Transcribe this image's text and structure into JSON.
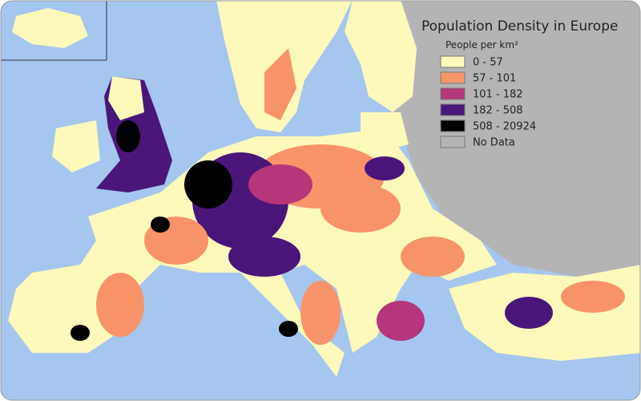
{
  "title": "Population Density in Europe",
  "legend": {
    "title": "People per km²",
    "items": [
      {
        "label": "0 - 57",
        "color": "#fcf9bb"
      },
      {
        "label": "57 - 101",
        "color": "#f9946a"
      },
      {
        "label": "101 - 182",
        "color": "#b5367a"
      },
      {
        "label": "182 - 508",
        "color": "#4a167a"
      },
      {
        "label": "508 - 20924",
        "color": "#000000"
      },
      {
        "label": "No Data",
        "color": "#b4b4b4"
      }
    ]
  }
}
